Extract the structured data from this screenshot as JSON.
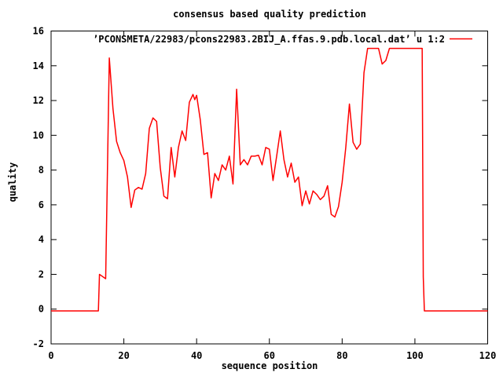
{
  "figure": {
    "title": "consensus based quality prediction",
    "xlabel": "sequence position",
    "ylabel": "quality",
    "legend_label": "’PCONSMETA/22983/pcons22983.2BIJ_A.ffas.9.pdb.local.dat’ u 1:2",
    "line_color": "#ff0000",
    "axis_color": "#000000",
    "text_color": "#000000",
    "background_color": "#ffffff"
  },
  "chart_data": {
    "type": "line",
    "title": "consensus based quality prediction",
    "xlabel": "sequence position",
    "ylabel": "quality",
    "xlim": [
      0,
      120
    ],
    "ylim": [
      -2,
      16
    ],
    "xticks": [
      0,
      20,
      40,
      60,
      80,
      100,
      120
    ],
    "yticks": [
      -2,
      0,
      2,
      4,
      6,
      8,
      10,
      12,
      14,
      16
    ],
    "grid": false,
    "tick_style": "inward-mirrored",
    "legend": {
      "position": "top-right-inside",
      "entries": [
        {
          "label": "’PCONSMETA/22983/pcons22983.2BIJ_A.ffas.9.pdb.local.dat’ u 1:2",
          "color": "#ff0000"
        }
      ]
    },
    "series": [
      {
        "name": "’PCONSMETA/22983/pcons22983.2BIJ_A.ffas.9.pdb.local.dat’ u 1:2",
        "color": "#ff0000",
        "points": [
          [
            0,
            -0.1
          ],
          [
            1,
            -0.1
          ],
          [
            2,
            -0.1
          ],
          [
            3,
            -0.1
          ],
          [
            4,
            -0.1
          ],
          [
            5,
            -0.1
          ],
          [
            6,
            -0.1
          ],
          [
            7,
            -0.1
          ],
          [
            8,
            -0.1
          ],
          [
            9,
            -0.1
          ],
          [
            10,
            -0.1
          ],
          [
            11,
            -0.1
          ],
          [
            12,
            -0.1
          ],
          [
            13,
            -0.1
          ],
          [
            13.3,
            2.0
          ],
          [
            15,
            1.75
          ],
          [
            16,
            14.45
          ],
          [
            17,
            11.55
          ],
          [
            18,
            9.65
          ],
          [
            19,
            9.0
          ],
          [
            20,
            8.55
          ],
          [
            21,
            7.6
          ],
          [
            22,
            5.85
          ],
          [
            23,
            6.85
          ],
          [
            24,
            7.0
          ],
          [
            25,
            6.9
          ],
          [
            26,
            7.8
          ],
          [
            27,
            10.4
          ],
          [
            28,
            11.0
          ],
          [
            29,
            10.8
          ],
          [
            30,
            8.15
          ],
          [
            31,
            6.5
          ],
          [
            32,
            6.35
          ],
          [
            33,
            9.3
          ],
          [
            34,
            7.6
          ],
          [
            35,
            9.3
          ],
          [
            36,
            10.25
          ],
          [
            37,
            9.7
          ],
          [
            38,
            11.9
          ],
          [
            39,
            12.35
          ],
          [
            39.5,
            12.05
          ],
          [
            40,
            12.3
          ],
          [
            41,
            10.9
          ],
          [
            42,
            8.9
          ],
          [
            43,
            9.0
          ],
          [
            44,
            6.4
          ],
          [
            45,
            7.8
          ],
          [
            46,
            7.4
          ],
          [
            47,
            8.3
          ],
          [
            48,
            8.0
          ],
          [
            49,
            8.8
          ],
          [
            50,
            7.2
          ],
          [
            51,
            12.65
          ],
          [
            52,
            8.3
          ],
          [
            53,
            8.6
          ],
          [
            54,
            8.3
          ],
          [
            55,
            8.8
          ],
          [
            56,
            8.8
          ],
          [
            57,
            8.85
          ],
          [
            58,
            8.3
          ],
          [
            59,
            9.3
          ],
          [
            60,
            9.2
          ],
          [
            61,
            7.4
          ],
          [
            62,
            8.8
          ],
          [
            63,
            10.25
          ],
          [
            64,
            8.6
          ],
          [
            65,
            7.6
          ],
          [
            66,
            8.4
          ],
          [
            67,
            7.3
          ],
          [
            68,
            7.6
          ],
          [
            69,
            5.95
          ],
          [
            70,
            6.8
          ],
          [
            71,
            6.05
          ],
          [
            72,
            6.8
          ],
          [
            73,
            6.6
          ],
          [
            74,
            6.3
          ],
          [
            75,
            6.5
          ],
          [
            76,
            7.1
          ],
          [
            77,
            5.45
          ],
          [
            78,
            5.3
          ],
          [
            79,
            5.9
          ],
          [
            80,
            7.3
          ],
          [
            81,
            9.3
          ],
          [
            82,
            11.8
          ],
          [
            83,
            9.6
          ],
          [
            84,
            9.2
          ],
          [
            85,
            9.5
          ],
          [
            86,
            13.6
          ],
          [
            87,
            15
          ],
          [
            88,
            15
          ],
          [
            89,
            15
          ],
          [
            90,
            15
          ],
          [
            91,
            14.1
          ],
          [
            92,
            14.3
          ],
          [
            93,
            15
          ],
          [
            94,
            15
          ],
          [
            95,
            15
          ],
          [
            96,
            15
          ],
          [
            97,
            15
          ],
          [
            98,
            15
          ],
          [
            99,
            15
          ],
          [
            100,
            15
          ],
          [
            101,
            15
          ],
          [
            102,
            15
          ],
          [
            102.3,
            1.85
          ],
          [
            102.6,
            -0.1
          ],
          [
            103,
            -0.1
          ],
          [
            104,
            -0.1
          ],
          [
            105,
            -0.1
          ],
          [
            106,
            -0.1
          ],
          [
            107,
            -0.1
          ],
          [
            108,
            -0.1
          ],
          [
            109,
            -0.1
          ],
          [
            110,
            -0.1
          ],
          [
            111,
            -0.1
          ],
          [
            112,
            -0.1
          ],
          [
            113,
            -0.1
          ],
          [
            114,
            -0.1
          ],
          [
            115,
            -0.1
          ],
          [
            116,
            -0.1
          ],
          [
            117,
            -0.1
          ],
          [
            118,
            -0.1
          ],
          [
            119,
            -0.1
          ],
          [
            120,
            -0.1
          ]
        ]
      }
    ]
  }
}
